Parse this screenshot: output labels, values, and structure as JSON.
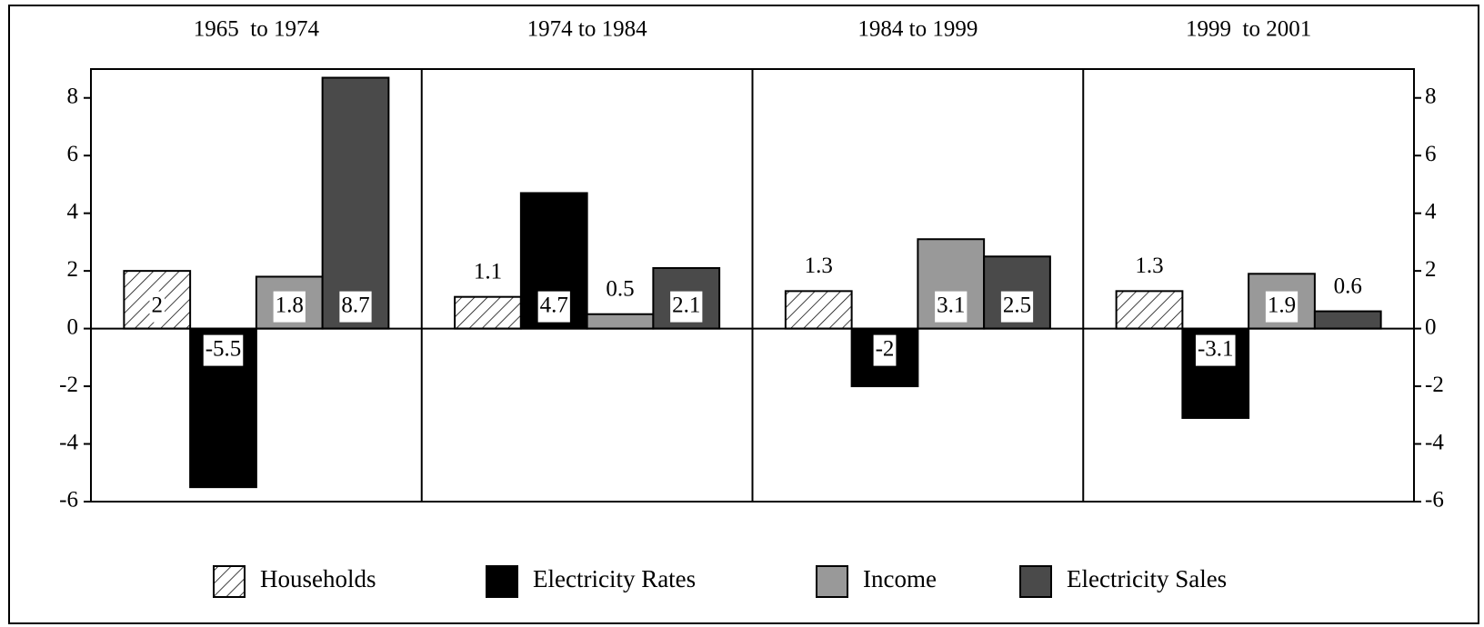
{
  "chart_data": {
    "type": "bar",
    "categories": [
      "1965  to 1974",
      "1974 to 1984",
      "1984 to 1999",
      "1999  to 2001"
    ],
    "series": [
      {
        "name": "Households",
        "color": "#ffffff",
        "pattern": "hatch",
        "values": [
          2,
          1.1,
          1.3,
          1.3
        ]
      },
      {
        "name": "Electricity Rates",
        "color": "#000000",
        "values": [
          -5.5,
          4.7,
          -2,
          -3.1
        ]
      },
      {
        "name": "Income",
        "color": "#999999",
        "values": [
          1.8,
          0.5,
          3.1,
          1.9
        ]
      },
      {
        "name": "Electricity Sales",
        "color": "#4a4a4a",
        "values": [
          8.7,
          2.1,
          2.5,
          0.6
        ]
      }
    ],
    "ylim": [
      -6,
      9
    ],
    "yticks": [
      -6,
      -4,
      -2,
      0,
      2,
      4,
      6,
      8
    ],
    "right_axis": true,
    "legend": "bottom"
  }
}
